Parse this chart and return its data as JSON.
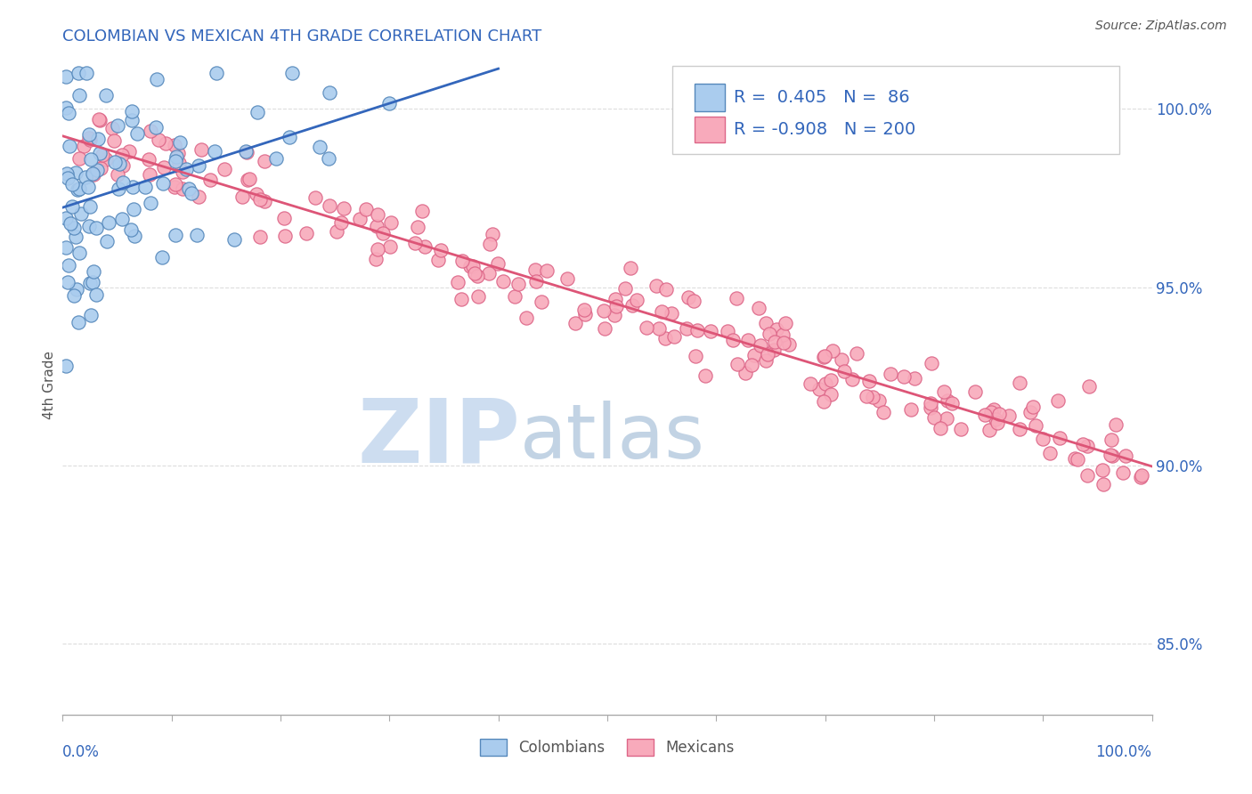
{
  "title": "COLOMBIAN VS MEXICAN 4TH GRADE CORRELATION CHART",
  "source_text": "Source: ZipAtlas.com",
  "ylabel": "4th Grade",
  "xlim": [
    0.0,
    100.0
  ],
  "ylim": [
    83.0,
    101.5
  ],
  "right_yticks": [
    85.0,
    90.0,
    95.0,
    100.0
  ],
  "right_yticklabels": [
    "85.0%",
    "90.0%",
    "95.0%",
    "100.0%"
  ],
  "colombians_R": 0.405,
  "colombians_N": 86,
  "mexicans_R": -0.908,
  "mexicans_N": 200,
  "colombian_color": "#aaccee",
  "colombian_edge": "#5588bb",
  "mexican_color": "#f8aabb",
  "mexican_edge": "#dd6688",
  "trend_blue": "#3366bb",
  "trend_pink": "#dd5577",
  "watermark_zip_color": "#c5d8ee",
  "watermark_atlas_color": "#b8cce0",
  "background_color": "#ffffff",
  "grid_color": "#dddddd",
  "title_color": "#3366bb",
  "axis_label_color": "#3366bb",
  "bottom_label_color": "#555555",
  "legend_color": "#3366bb",
  "legend_fontsize": 14,
  "title_fontsize": 13,
  "source_fontsize": 10,
  "marker_size": 120,
  "seed": 42
}
